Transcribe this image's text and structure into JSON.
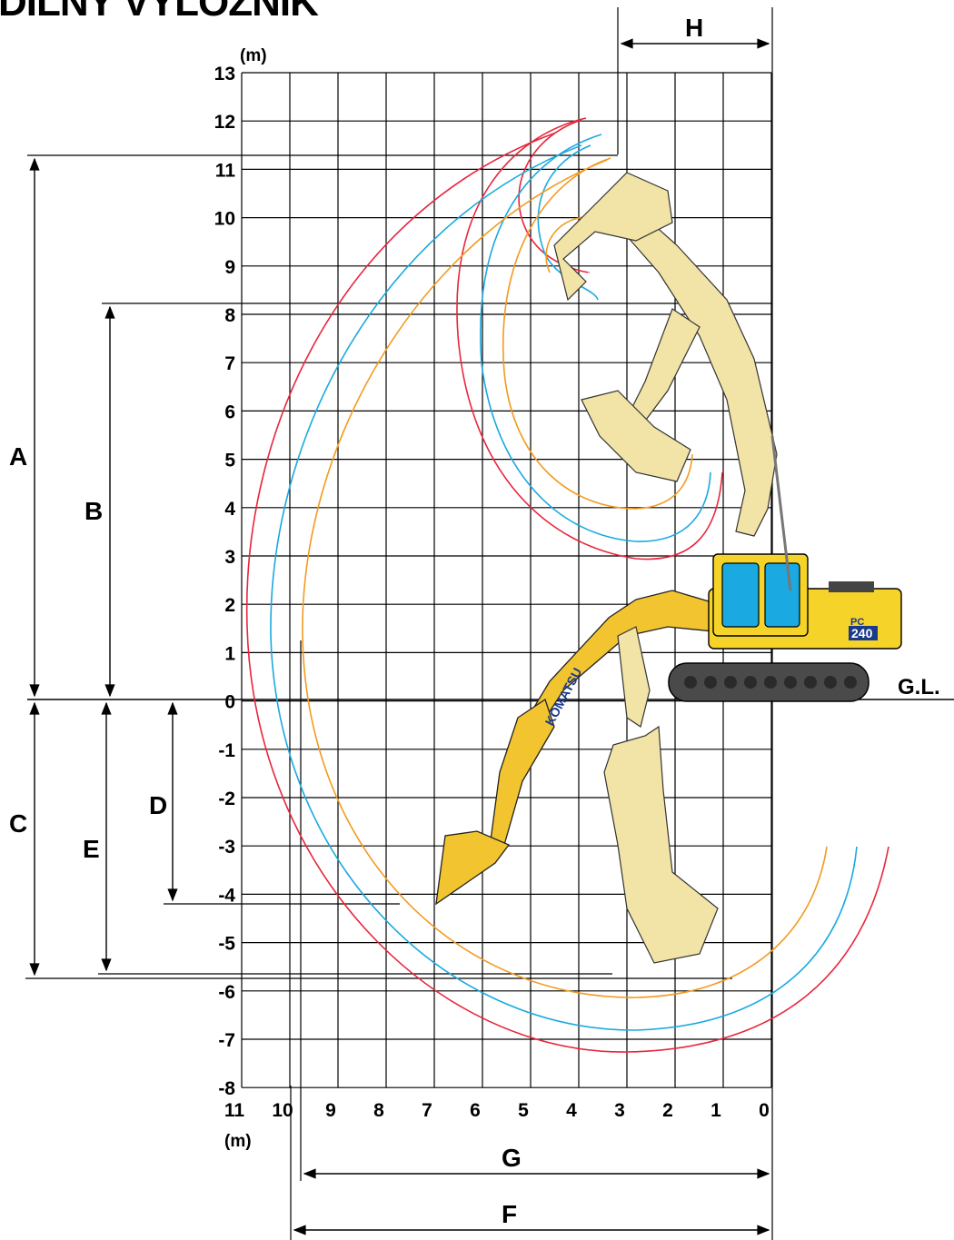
{
  "title": "DILNY VYLOZNIK",
  "units": {
    "y": "(m)",
    "x": "(m)"
  },
  "ground_label": "G.L.",
  "y_ticks": [
    "13",
    "12",
    "11",
    "10",
    "9",
    "8",
    "7",
    "6",
    "5",
    "4",
    "3",
    "2",
    "1",
    "0",
    "-1",
    "-2",
    "-3",
    "-4",
    "-5",
    "-6",
    "-7",
    "-8"
  ],
  "x_ticks": [
    "11",
    "10",
    "9",
    "8",
    "7",
    "6",
    "5",
    "4",
    "3",
    "2",
    "1",
    "0"
  ],
  "dimension_labels": {
    "A": "A",
    "B": "B",
    "C": "C",
    "D": "D",
    "E": "E",
    "F": "F",
    "G": "G",
    "H": "H"
  },
  "machine": {
    "brand": "KOMATSU",
    "model_prefix": "PC",
    "model_number": "240"
  },
  "colors": {
    "red": "#e8263c",
    "blue": "#1aa9e0",
    "orange": "#f39a1f",
    "boom": "#f2e3a6",
    "boom_lit": "#f2c530",
    "track": "#4a4a4a",
    "body": "#f5d328"
  },
  "chart_data": {
    "type": "working-range diagram",
    "x_range": [
      11,
      0
    ],
    "y_range": [
      -8,
      13
    ],
    "ground_level": 0,
    "reference_levels": {
      "A": 11.2,
      "B": 8.2,
      "C": -5.8,
      "D": -4.2,
      "E": -5.6
    },
    "reference_x": {
      "F": 10.0,
      "G": 9.8,
      "H": 3.2
    }
  }
}
